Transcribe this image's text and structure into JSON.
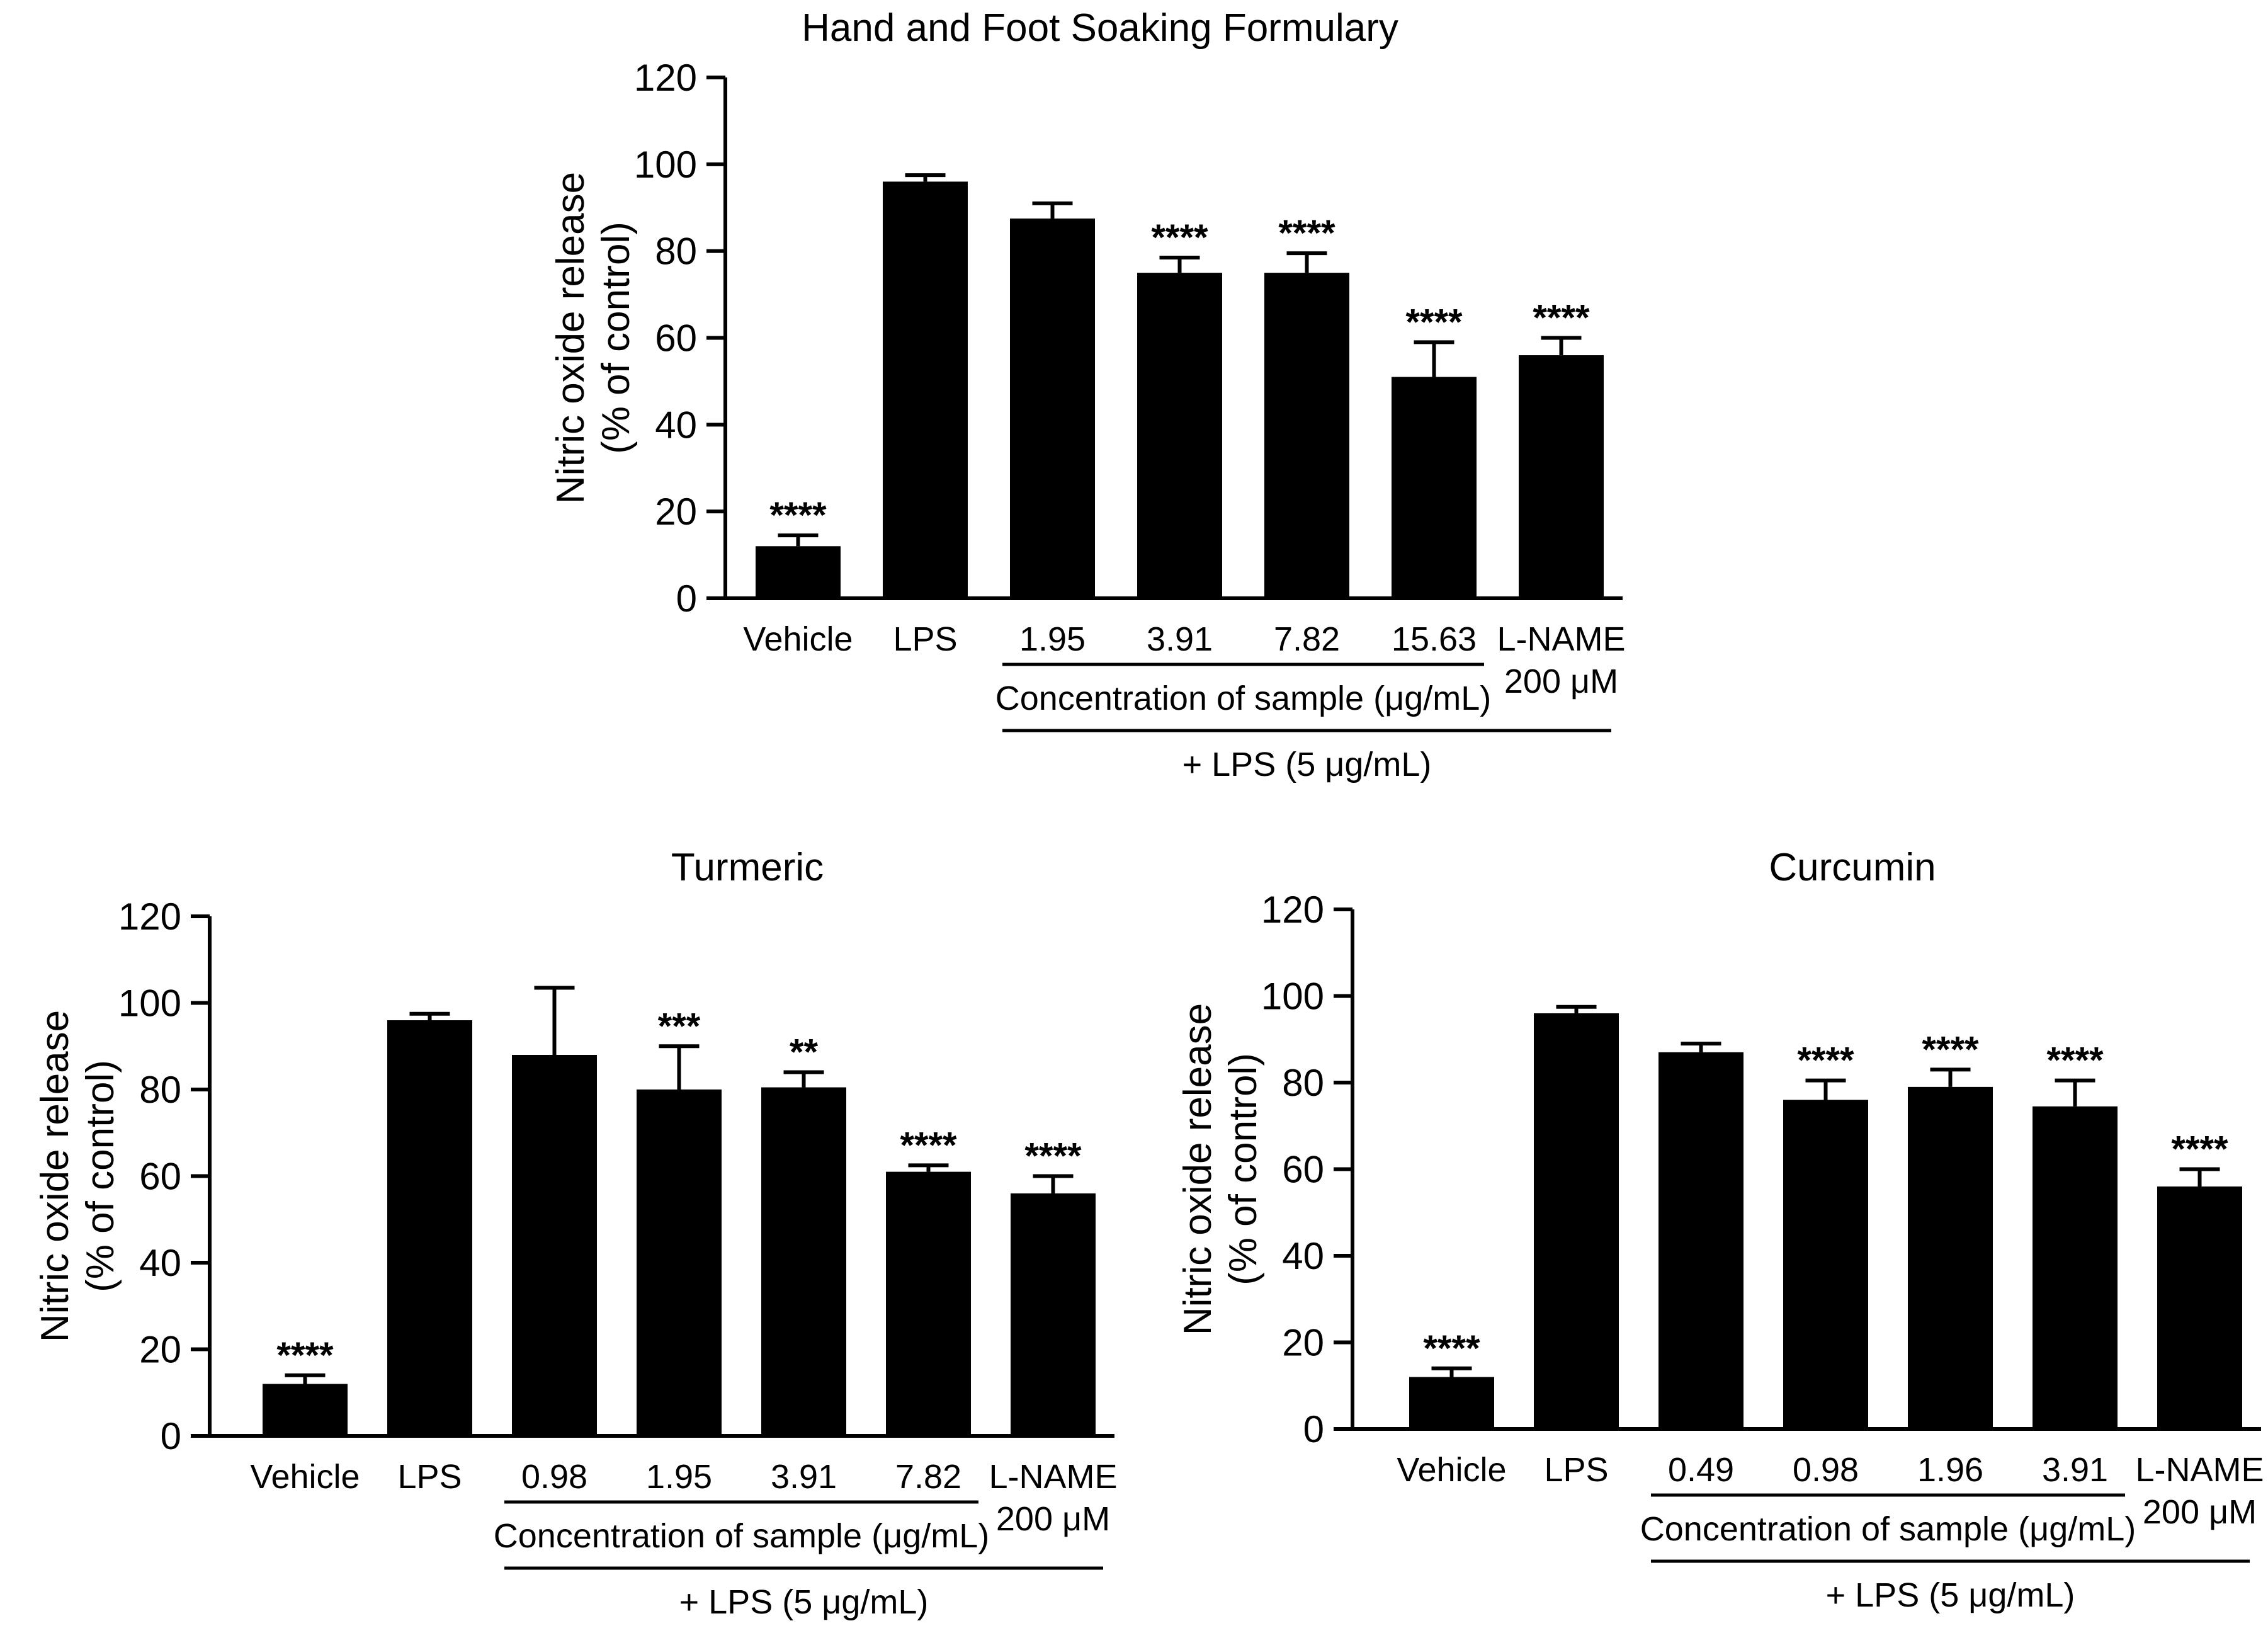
{
  "chart_data": [
    {
      "type": "bar",
      "title": "Hand and Foot Soaking Formulary",
      "ylabel_line1": "Nitric oxide release",
      "ylabel_line2": "(% of control)",
      "ylim": [
        0,
        120
      ],
      "yticks": [
        0,
        20,
        40,
        60,
        80,
        100,
        120
      ],
      "categories": [
        "Vehicle",
        "LPS",
        "1.95",
        "3.91",
        "7.82",
        "15.63",
        "L-NAME"
      ],
      "category_sublabels": [
        "",
        "",
        "",
        "",
        "",
        "",
        "200 μM"
      ],
      "values": [
        12,
        96,
        87.5,
        75,
        75,
        51,
        56
      ],
      "errors": [
        2.5,
        1.5,
        3.5,
        3.5,
        4.5,
        8,
        4
      ],
      "significance": [
        "****",
        "",
        "",
        "****",
        "****",
        "****",
        "****"
      ],
      "concentration_label": "Concentration of sample (μg/mL)",
      "lps_label": "+ LPS (5 μg/mL)",
      "bar_color": "#000000"
    },
    {
      "type": "bar",
      "title": "Turmeric",
      "ylabel_line1": "Nitric oxide release",
      "ylabel_line2": "(% of control)",
      "ylim": [
        0,
        120
      ],
      "yticks": [
        0,
        20,
        40,
        60,
        80,
        100,
        120
      ],
      "categories": [
        "Vehicle",
        "LPS",
        "0.98",
        "1.95",
        "3.91",
        "7.82",
        "L-NAME"
      ],
      "category_sublabels": [
        "",
        "",
        "",
        "",
        "",
        "",
        "200 μM"
      ],
      "values": [
        12,
        96,
        88,
        80,
        80.5,
        61,
        56
      ],
      "errors": [
        2,
        1.5,
        15.5,
        10,
        3.5,
        1.5,
        4
      ],
      "significance": [
        "****",
        "",
        "",
        "***",
        "**",
        "****",
        "****"
      ],
      "concentration_label": "Concentration of sample (μg/mL)",
      "lps_label": "+ LPS (5 μg/mL)",
      "bar_color": "#000000"
    },
    {
      "type": "bar",
      "title": "Curcumin",
      "ylabel_line1": "Nitric oxide release",
      "ylabel_line2": "(% of control)",
      "ylim": [
        0,
        120
      ],
      "yticks": [
        0,
        20,
        40,
        60,
        80,
        100,
        120
      ],
      "categories": [
        "Vehicle",
        "LPS",
        "0.49",
        "0.98",
        "1.96",
        "3.91",
        "L-NAME"
      ],
      "category_sublabels": [
        "",
        "",
        "",
        "",
        "",
        "",
        "200 μM"
      ],
      "values": [
        12,
        96,
        87,
        76,
        79,
        74.5,
        56
      ],
      "errors": [
        2,
        1.5,
        2,
        4.5,
        4,
        6,
        4
      ],
      "significance": [
        "****",
        "",
        "",
        "****",
        "****",
        "****",
        "****"
      ],
      "concentration_label": "Concentration of sample (μg/mL)",
      "lps_label": "+ LPS (5 μg/mL)",
      "bar_color": "#000000"
    }
  ]
}
